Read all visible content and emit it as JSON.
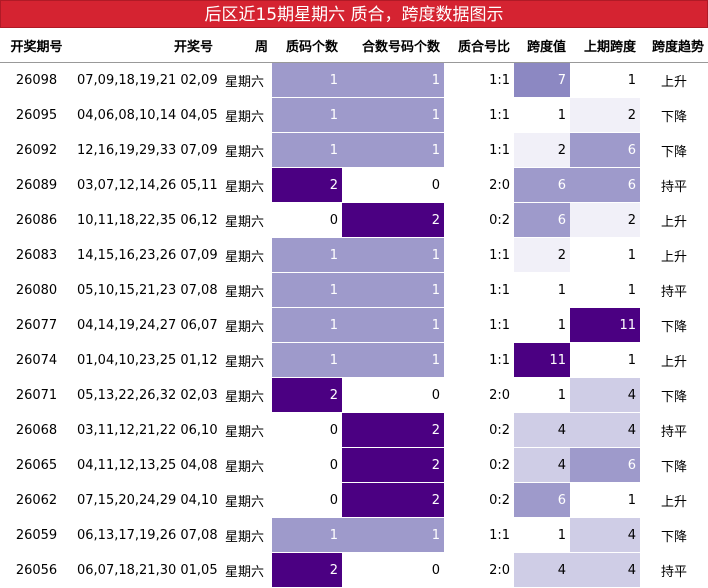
{
  "title": "后区近15期星期六 质合，跨度数据图示",
  "headers": [
    "开奖期号",
    "开奖号",
    "周",
    "质码个数",
    "合数号码个数",
    "质合号比",
    "跨度值",
    "上期跨度",
    "跨度趋势"
  ],
  "colors": {
    "title_bg": "#d52331",
    "level_dark": "#4b0082",
    "level_mid": "#9e9acb",
    "level_light": "#cfcde6",
    "level_pale": "#f1f0f8"
  },
  "rows": [
    {
      "issue": "26098",
      "nums": "07,09,18,19,21 02,09",
      "week": "星期六",
      "prime": "1",
      "composite": "1",
      "ratio": "1:1",
      "span": "7",
      "prev_span": "1",
      "trend": "上升"
    },
    {
      "issue": "26095",
      "nums": "04,06,08,10,14 04,05",
      "week": "星期六",
      "prime": "1",
      "composite": "1",
      "ratio": "1:1",
      "span": "1",
      "prev_span": "2",
      "trend": "下降"
    },
    {
      "issue": "26092",
      "nums": "12,16,19,29,33 07,09",
      "week": "星期六",
      "prime": "1",
      "composite": "1",
      "ratio": "1:1",
      "span": "2",
      "prev_span": "6",
      "trend": "下降"
    },
    {
      "issue": "26089",
      "nums": "03,07,12,14,26 05,11",
      "week": "星期六",
      "prime": "2",
      "composite": "0",
      "ratio": "2:0",
      "span": "6",
      "prev_span": "6",
      "trend": "持平"
    },
    {
      "issue": "26086",
      "nums": "10,11,18,22,35 06,12",
      "week": "星期六",
      "prime": "0",
      "composite": "2",
      "ratio": "0:2",
      "span": "6",
      "prev_span": "2",
      "trend": "上升"
    },
    {
      "issue": "26083",
      "nums": "14,15,16,23,26 07,09",
      "week": "星期六",
      "prime": "1",
      "composite": "1",
      "ratio": "1:1",
      "span": "2",
      "prev_span": "1",
      "trend": "上升"
    },
    {
      "issue": "26080",
      "nums": "05,10,15,21,23 07,08",
      "week": "星期六",
      "prime": "1",
      "composite": "1",
      "ratio": "1:1",
      "span": "1",
      "prev_span": "1",
      "trend": "持平"
    },
    {
      "issue": "26077",
      "nums": "04,14,19,24,27 06,07",
      "week": "星期六",
      "prime": "1",
      "composite": "1",
      "ratio": "1:1",
      "span": "1",
      "prev_span": "11",
      "trend": "下降"
    },
    {
      "issue": "26074",
      "nums": "01,04,10,23,25 01,12",
      "week": "星期六",
      "prime": "1",
      "composite": "1",
      "ratio": "1:1",
      "span": "11",
      "prev_span": "1",
      "trend": "上升"
    },
    {
      "issue": "26071",
      "nums": "05,13,22,26,32 02,03",
      "week": "星期六",
      "prime": "2",
      "composite": "0",
      "ratio": "2:0",
      "span": "1",
      "prev_span": "4",
      "trend": "下降"
    },
    {
      "issue": "26068",
      "nums": "03,11,12,21,22 06,10",
      "week": "星期六",
      "prime": "0",
      "composite": "2",
      "ratio": "0:2",
      "span": "4",
      "prev_span": "4",
      "trend": "持平"
    },
    {
      "issue": "26065",
      "nums": "04,11,12,13,25 04,08",
      "week": "星期六",
      "prime": "0",
      "composite": "2",
      "ratio": "0:2",
      "span": "4",
      "prev_span": "6",
      "trend": "下降"
    },
    {
      "issue": "26062",
      "nums": "07,15,20,24,29 04,10",
      "week": "星期六",
      "prime": "0",
      "composite": "2",
      "ratio": "0:2",
      "span": "6",
      "prev_span": "1",
      "trend": "上升"
    },
    {
      "issue": "26059",
      "nums": "06,13,17,19,26 07,08",
      "week": "星期六",
      "prime": "1",
      "composite": "1",
      "ratio": "1:1",
      "span": "1",
      "prev_span": "4",
      "trend": "下降"
    },
    {
      "issue": "26056",
      "nums": "06,07,18,21,30 01,05",
      "week": "星期六",
      "prime": "2",
      "composite": "0",
      "ratio": "2:0",
      "span": "4",
      "prev_span": "4",
      "trend": "持平"
    }
  ]
}
